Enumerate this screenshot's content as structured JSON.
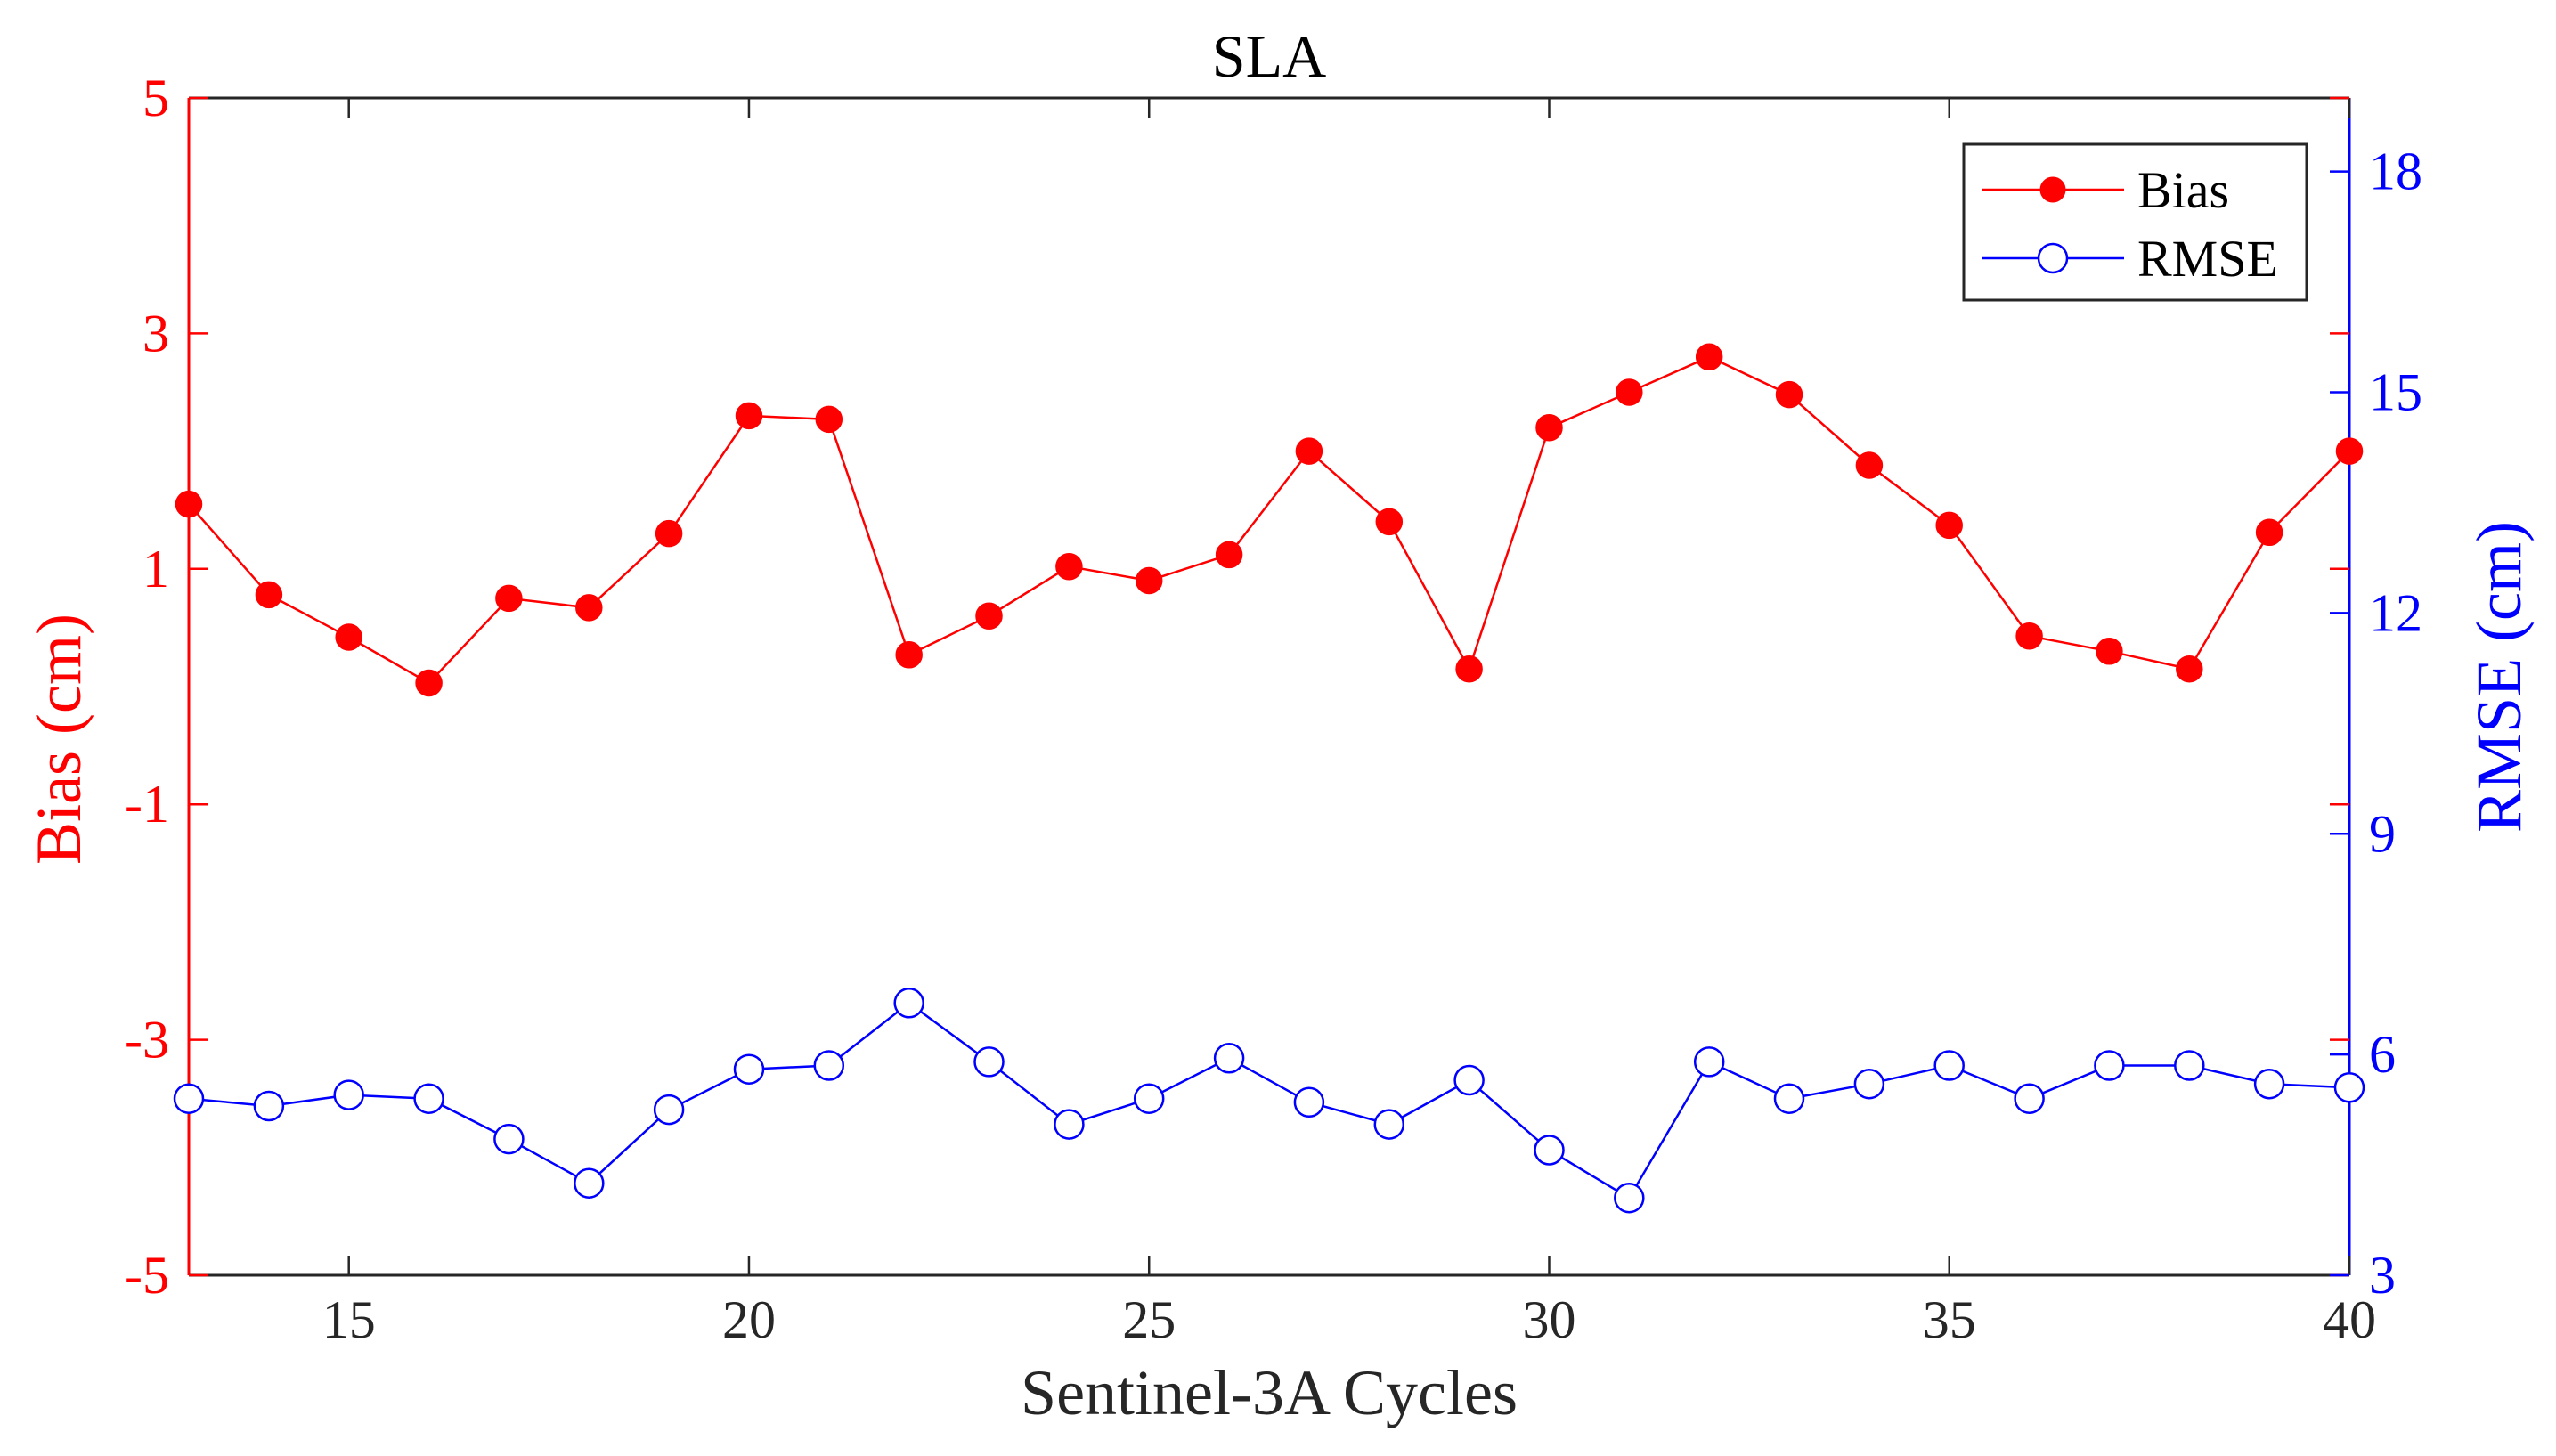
{
  "chart_data": {
    "type": "line",
    "title": "SLA",
    "xlabel": "Sentinel-3A Cycles",
    "ylabel_left": "Bias (cm)",
    "ylabel_right": "RMSE (cm)",
    "xlim": [
      13,
      40
    ],
    "ylim_left": [
      -5,
      5
    ],
    "ylim_right": [
      3,
      19
    ],
    "xticks": [
      15,
      20,
      25,
      30,
      35,
      40
    ],
    "yticks_left": [
      -5,
      -3,
      -1,
      1,
      3,
      5
    ],
    "yticks_right": [
      3,
      6,
      9,
      12,
      15,
      18
    ],
    "legend_position": "top-right",
    "x": [
      13,
      14,
      15,
      16,
      17,
      18,
      19,
      20,
      21,
      22,
      23,
      24,
      25,
      26,
      27,
      28,
      29,
      30,
      31,
      32,
      33,
      34,
      35,
      36,
      37,
      38,
      39,
      40
    ],
    "series": [
      {
        "name": "Bias",
        "axis": "left",
        "color": "#ff0000",
        "marker": "filled-circle",
        "values": [
          1.55,
          0.78,
          0.42,
          0.03,
          0.75,
          0.67,
          1.3,
          2.3,
          2.27,
          0.27,
          0.6,
          1.02,
          0.9,
          1.12,
          2.0,
          1.4,
          0.15,
          2.2,
          2.5,
          2.8,
          2.48,
          1.88,
          1.37,
          0.43,
          0.3,
          0.15,
          1.31,
          2.0
        ]
      },
      {
        "name": "RMSE",
        "axis": "right",
        "color": "#0000ff",
        "marker": "open-circle",
        "values": [
          5.4,
          5.3,
          5.45,
          5.4,
          4.85,
          4.25,
          5.25,
          5.8,
          5.85,
          6.7,
          5.9,
          5.05,
          5.4,
          5.95,
          5.35,
          5.05,
          5.65,
          4.7,
          4.05,
          5.9,
          5.4,
          5.6,
          5.85,
          5.4,
          5.85,
          5.85,
          5.6,
          5.55
        ]
      }
    ]
  }
}
